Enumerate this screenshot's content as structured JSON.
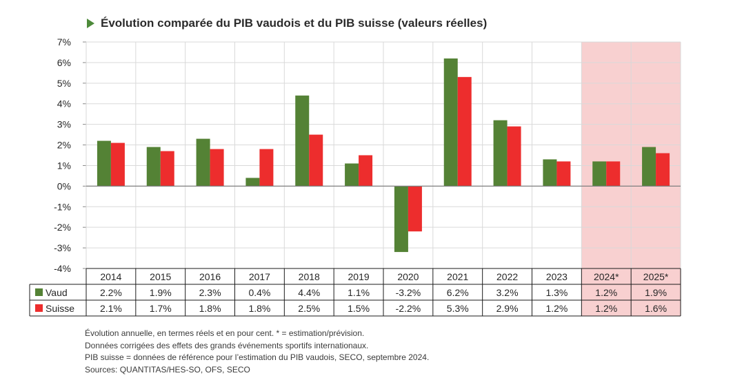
{
  "chart_data": {
    "type": "bar",
    "title": "Évolution comparée du PIB vaudois et du PIB suisse (valeurs réelles)",
    "categories": [
      "2014",
      "2015",
      "2016",
      "2017",
      "2018",
      "2019",
      "2020",
      "2021",
      "2022",
      "2023",
      "2024*",
      "2025*"
    ],
    "estimated_categories": [
      "2024*",
      "2025*"
    ],
    "series": [
      {
        "name": "Vaud",
        "values": [
          2.2,
          1.9,
          2.3,
          0.4,
          4.4,
          1.1,
          -3.2,
          6.2,
          3.2,
          1.3,
          1.2,
          1.9
        ],
        "color": "#548235"
      },
      {
        "name": "Suisse",
        "values": [
          2.1,
          1.7,
          1.8,
          1.8,
          2.5,
          1.5,
          -2.2,
          5.3,
          2.9,
          1.2,
          1.2,
          1.6
        ],
        "color": "#ed2d2d"
      }
    ],
    "table_values": {
      "Vaud": [
        "2.2%",
        "1.9%",
        "2.3%",
        "0.4%",
        "4.4%",
        "1.1%",
        "-3.2%",
        "6.2%",
        "3.2%",
        "1.3%",
        "1.2%",
        "1.9%"
      ],
      "Suisse": [
        "2.1%",
        "1.7%",
        "1.8%",
        "1.8%",
        "2.5%",
        "1.5%",
        "-2.2%",
        "5.3%",
        "2.9%",
        "1.2%",
        "1.2%",
        "1.6%"
      ]
    },
    "ylim": [
      -4,
      7
    ],
    "yticks": [
      "7%",
      "6%",
      "5%",
      "4%",
      "3%",
      "2%",
      "1%",
      "0%",
      "-1%",
      "-2%",
      "-3%",
      "-4%"
    ],
    "xlabel": "",
    "ylabel": "",
    "grid": true,
    "legend": "data table below chart",
    "colors": {
      "vaud": "#548235",
      "suisse": "#ed2d2d",
      "forecast_shade": "#f8d0d0",
      "grid": "#d9d9d9",
      "title_arrow": "#4d8a3a"
    }
  },
  "notes": [
    "Évolution annuelle, en termes réels et en pour cent. * = estimation/prévision.",
    "Données corrigées des effets des grands événements sportifs internationaux.",
    "PIB suisse = données de référence pour l’estimation du PIB vaudois, SECO, septembre 2024.",
    "Sources: QUANTITAS/HES-SO, OFS, SECO"
  ]
}
